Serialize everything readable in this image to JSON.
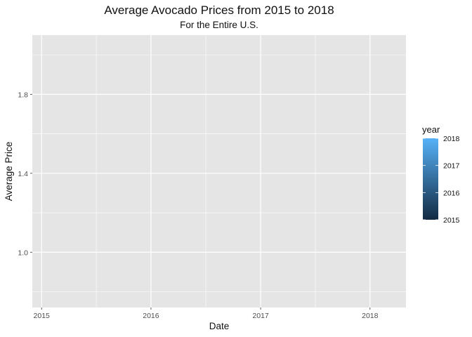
{
  "chart_data": {
    "type": "line",
    "title": "Average Avocado Prices from 2015 to 2018",
    "subtitle": "For the Entire U.S.",
    "xlabel": "Date",
    "ylabel": "Average Price",
    "x_ticks": [
      "2015",
      "2016",
      "2017",
      "2018"
    ],
    "y_ticks": [
      "1.0",
      "1.4",
      "1.8"
    ],
    "xlim": [
      "2014-12-01",
      "2018-05-01"
    ],
    "ylim": [
      0.72,
      2.1
    ],
    "y_tick_values": [
      1.0,
      1.4,
      1.8
    ],
    "grid": true,
    "series": [],
    "legend": {
      "title": "year",
      "position": "right",
      "type": "colorbar",
      "labels": [
        "2018",
        "2017",
        "2016",
        "2015"
      ],
      "range": [
        2015,
        2018
      ],
      "color_low": "#132B43",
      "color_high": "#56B1F7"
    }
  },
  "style": {
    "panel_background": "#e5e5e5",
    "grid_color": "#ffffff"
  }
}
